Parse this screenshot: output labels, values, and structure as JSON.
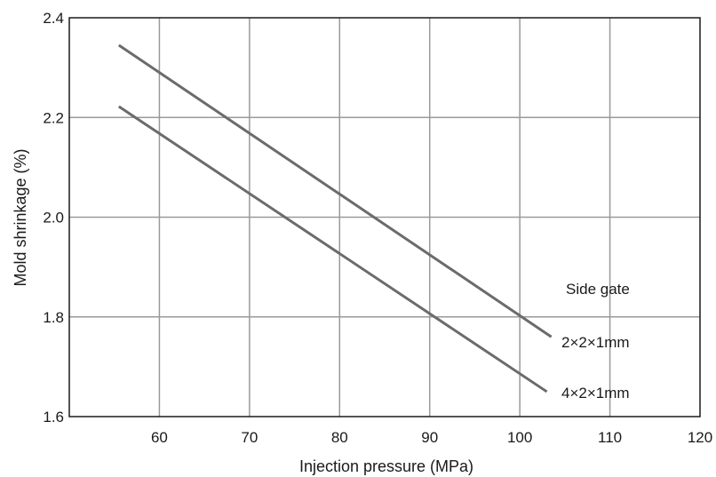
{
  "chart_data": {
    "type": "line",
    "title": "",
    "xlabel": "Injection pressure (MPa)",
    "ylabel": "Mold shrinkage (%)",
    "xlim": [
      50,
      120
    ],
    "ylim": [
      1.6,
      2.4
    ],
    "x_ticks": [
      60,
      70,
      80,
      90,
      100,
      110,
      120
    ],
    "y_ticks": [
      1.6,
      1.8,
      2.0,
      2.2,
      2.4
    ],
    "x_tick_labels": [
      "60",
      "70",
      "80",
      "90",
      "100",
      "110",
      "120"
    ],
    "y_tick_labels": [
      "1.6",
      "1.8",
      "2.0",
      "2.2",
      "2.4"
    ],
    "grid": true,
    "line_color": "#6b6b6b",
    "grid_color": "#9a9a9a",
    "series": [
      {
        "name": "2×2×1mm",
        "x": [
          55.5,
          103.5
        ],
        "y": [
          2.345,
          1.76
        ]
      },
      {
        "name": "4×2×1mm",
        "x": [
          55.5,
          103
        ],
        "y": [
          2.222,
          1.65
        ]
      }
    ],
    "annotations": {
      "legend_title": "Side gate",
      "series_labels": [
        "2×2×1mm",
        "4×2×1mm"
      ]
    }
  }
}
